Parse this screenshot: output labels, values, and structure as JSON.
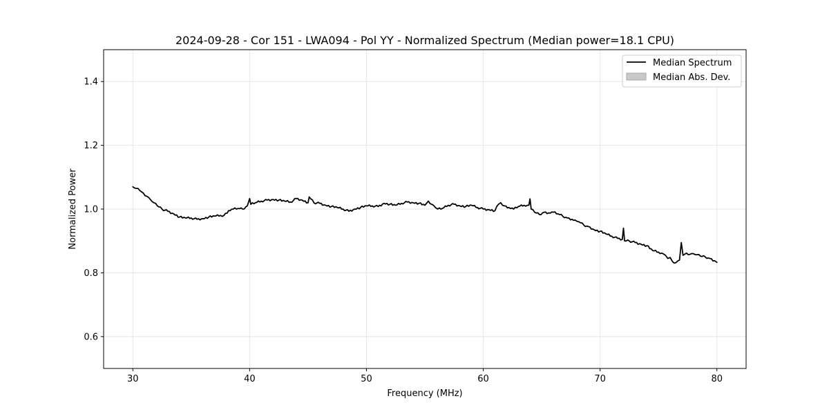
{
  "chart_data": {
    "type": "line",
    "title": "2024-09-28 - Cor 151 - LWA094 - Pol YY - Normalized Spectrum (Median power=18.1 CPU)",
    "xlabel": "Frequency (MHz)",
    "ylabel": "Normalized Power",
    "xlim": [
      27.5,
      82.5
    ],
    "ylim": [
      0.5,
      1.5
    ],
    "xticks": [
      30,
      40,
      50,
      60,
      70,
      80
    ],
    "yticks": [
      0.6,
      0.8,
      1.0,
      1.2,
      1.4
    ],
    "xtick_labels": [
      "30",
      "40",
      "50",
      "60",
      "70",
      "80"
    ],
    "ytick_labels": [
      "0.6",
      "0.8",
      "1.0",
      "1.2",
      "1.4"
    ],
    "grid": true,
    "legend_position": "top-right",
    "legend": [
      "Median Spectrum",
      "Median Abs. Dev."
    ],
    "series": [
      {
        "name": "Median Spectrum",
        "color": "#000000",
        "x": [
          30.0,
          30.3,
          30.6,
          30.9,
          31.2,
          31.5,
          31.8,
          32.1,
          32.5,
          33.0,
          33.5,
          34.0,
          34.5,
          35.0,
          35.5,
          36.0,
          36.5,
          37.0,
          37.5,
          37.8,
          38.2,
          38.6,
          39.0,
          39.4,
          39.8,
          40.0,
          40.1,
          40.5,
          41.0,
          41.5,
          42.0,
          42.5,
          43.0,
          43.5,
          44.0,
          44.5,
          45.0,
          45.1,
          45.5,
          46.0,
          46.5,
          47.0,
          47.5,
          48.0,
          48.5,
          49.0,
          49.5,
          50.0,
          50.5,
          51.0,
          51.5,
          52.0,
          52.5,
          53.0,
          53.5,
          54.0,
          54.5,
          55.0,
          55.3,
          55.6,
          55.9,
          56.1,
          56.5,
          57.0,
          57.5,
          58.0,
          58.5,
          59.0,
          59.5,
          60.0,
          60.5,
          61.0,
          61.3,
          61.5,
          61.8,
          62.2,
          62.6,
          63.0,
          63.5,
          63.9,
          64.0,
          64.1,
          64.4,
          64.8,
          65.2,
          65.6,
          66.0,
          66.4,
          66.8,
          67.2,
          67.6,
          68.0,
          68.2,
          68.6,
          69.0,
          69.5,
          70.0,
          70.5,
          71.0,
          71.5,
          71.9,
          72.0,
          72.1,
          72.5,
          73.0,
          73.5,
          74.0,
          74.5,
          75.0,
          75.4,
          75.6,
          75.8,
          76.0,
          76.2,
          76.5,
          76.8,
          76.95,
          77.1,
          77.4,
          77.7,
          78.0,
          78.3,
          78.6,
          79.0,
          79.4,
          79.8,
          80.0
        ],
        "values": [
          1.07,
          1.065,
          1.058,
          1.05,
          1.04,
          1.03,
          1.02,
          1.01,
          1.0,
          0.993,
          0.985,
          0.975,
          0.972,
          0.972,
          0.968,
          0.97,
          0.975,
          0.978,
          0.98,
          0.98,
          0.995,
          1.0,
          1.002,
          1.0,
          1.01,
          1.033,
          1.015,
          1.02,
          1.025,
          1.028,
          1.03,
          1.028,
          1.025,
          1.022,
          1.033,
          1.028,
          1.02,
          1.038,
          1.02,
          1.018,
          1.012,
          1.008,
          1.005,
          1.0,
          0.993,
          1.0,
          1.005,
          1.01,
          1.01,
          1.008,
          1.018,
          1.015,
          1.012,
          1.018,
          1.022,
          1.02,
          1.018,
          1.012,
          1.025,
          1.015,
          1.005,
          1.0,
          1.002,
          1.012,
          1.015,
          1.01,
          1.008,
          1.012,
          1.005,
          1.0,
          0.998,
          0.995,
          1.015,
          1.02,
          1.01,
          1.005,
          1.0,
          1.008,
          1.012,
          1.012,
          1.032,
          1.0,
          0.99,
          0.983,
          0.99,
          0.988,
          0.99,
          0.985,
          0.978,
          0.972,
          0.968,
          0.962,
          0.96,
          0.95,
          0.945,
          0.935,
          0.93,
          0.922,
          0.915,
          0.908,
          0.905,
          0.94,
          0.9,
          0.9,
          0.895,
          0.89,
          0.885,
          0.87,
          0.865,
          0.86,
          0.855,
          0.845,
          0.848,
          0.835,
          0.832,
          0.84,
          0.895,
          0.855,
          0.862,
          0.858,
          0.86,
          0.857,
          0.852,
          0.85,
          0.845,
          0.838,
          0.833
        ]
      },
      {
        "name": "Median Abs. Dev.",
        "color": "#c8c8c8",
        "type": "area"
      }
    ]
  }
}
